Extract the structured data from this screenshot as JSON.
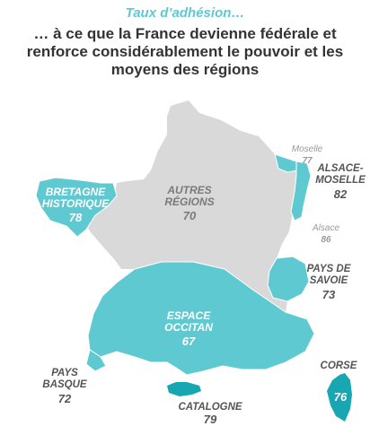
{
  "header": {
    "subtitle": "Taux d’adhésion…",
    "question_lines": [
      "… à ce que la France devienne fédérale et",
      "renforce considérablement le pouvoir et les",
      "moyens des régions"
    ]
  },
  "colors": {
    "highlight": "#5fc9d2",
    "other": "#d9d9d9",
    "text_dark": "#333333"
  },
  "regions": {
    "bretagne": {
      "name_lines": [
        "BRETAGNE",
        "HISTORIQUE"
      ],
      "value": "78"
    },
    "autres": {
      "name_lines": [
        "AUTRES",
        "RÉGIONS"
      ],
      "value": "70"
    },
    "moselle": {
      "name": "Moselle",
      "value": "77"
    },
    "alsace_moselle": {
      "name_lines": [
        "ALSACE-",
        "MOSELLE"
      ],
      "value": "82"
    },
    "alsace": {
      "name": "Alsace",
      "value": "86"
    },
    "savoie": {
      "name_lines": [
        "PAYS DE",
        "SAVOIE"
      ],
      "value": "73"
    },
    "occitan": {
      "name_lines": [
        "ESPACE",
        "OCCITAN"
      ],
      "value": "67"
    },
    "basque": {
      "name_lines": [
        "PAYS",
        "BASQUE"
      ],
      "value": "72"
    },
    "catalogne": {
      "name": "CATALOGNE",
      "value": "79"
    },
    "corse": {
      "name": "CORSE",
      "value": "76"
    }
  }
}
